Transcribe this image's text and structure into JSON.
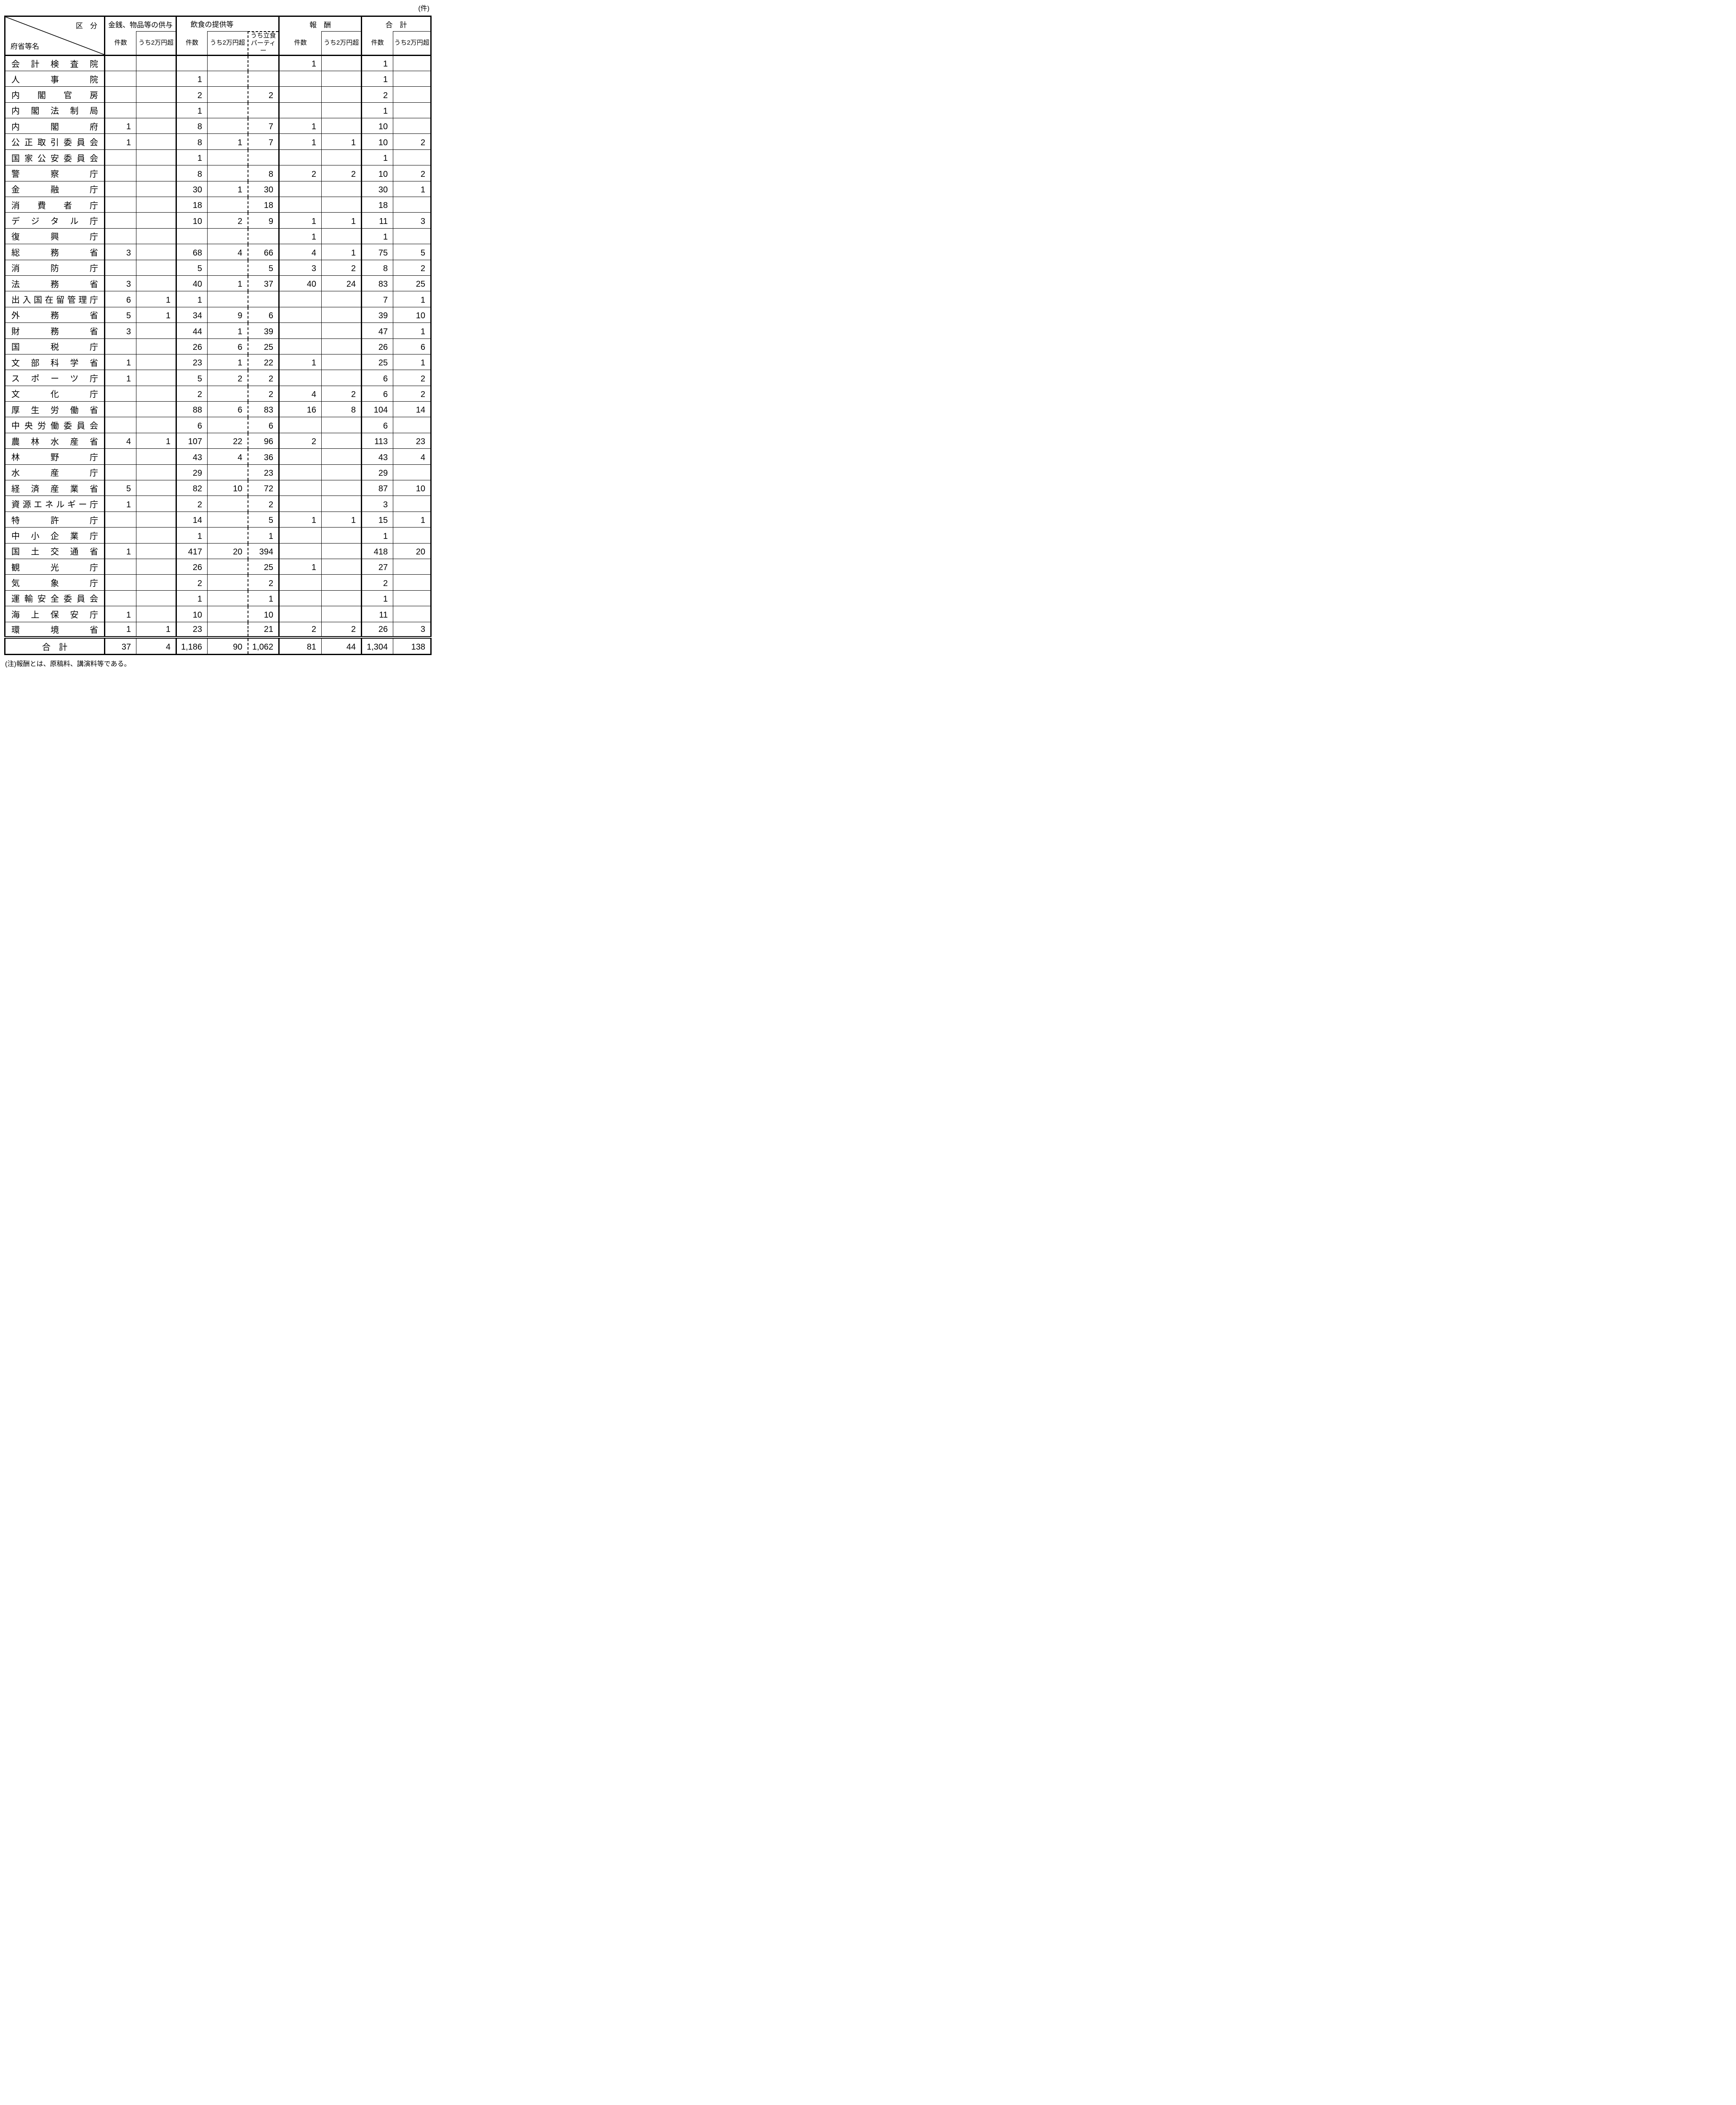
{
  "unit_label": "(件)",
  "note": "(注)報酬とは、原稿料、講演料等である。",
  "header": {
    "corner": {
      "top_right": "区　分",
      "bottom_left": "府省等名"
    },
    "groups": [
      {
        "label": "金銭、物品等の供与"
      },
      {
        "label": "飲食の提供等"
      },
      {
        "label": "報　酬"
      },
      {
        "label": "合　計"
      }
    ],
    "sub_columns": [
      "件数",
      "うち2万円超",
      "件数",
      "うち2万円超",
      "うち立食\nパーティー",
      "件数",
      "うち2万円超",
      "件数",
      "うち2万円超"
    ]
  },
  "rows": [
    {
      "name": "会計検査院",
      "values": [
        "",
        "",
        "",
        "",
        "",
        "1",
        "",
        "1",
        ""
      ]
    },
    {
      "name": "人事院",
      "values": [
        "",
        "",
        "1",
        "",
        "",
        "",
        "",
        "1",
        ""
      ]
    },
    {
      "name": "内閣官房",
      "values": [
        "",
        "",
        "2",
        "",
        "2",
        "",
        "",
        "2",
        ""
      ]
    },
    {
      "name": "内閣法制局",
      "values": [
        "",
        "",
        "1",
        "",
        "",
        "",
        "",
        "1",
        ""
      ]
    },
    {
      "name": "内閣府",
      "values": [
        "1",
        "",
        "8",
        "",
        "7",
        "1",
        "",
        "10",
        ""
      ]
    },
    {
      "name": "公正取引委員会",
      "values": [
        "1",
        "",
        "8",
        "1",
        "7",
        "1",
        "1",
        "10",
        "2"
      ]
    },
    {
      "name": "国家公安委員会",
      "values": [
        "",
        "",
        "1",
        "",
        "",
        "",
        "",
        "1",
        ""
      ]
    },
    {
      "name": "警察庁",
      "values": [
        "",
        "",
        "8",
        "",
        "8",
        "2",
        "2",
        "10",
        "2"
      ]
    },
    {
      "name": "金融庁",
      "values": [
        "",
        "",
        "30",
        "1",
        "30",
        "",
        "",
        "30",
        "1"
      ]
    },
    {
      "name": "消費者庁",
      "values": [
        "",
        "",
        "18",
        "",
        "18",
        "",
        "",
        "18",
        ""
      ]
    },
    {
      "name": "デジタル庁",
      "values": [
        "",
        "",
        "10",
        "2",
        "9",
        "1",
        "1",
        "11",
        "3"
      ]
    },
    {
      "name": "復興庁",
      "values": [
        "",
        "",
        "",
        "",
        "",
        "1",
        "",
        "1",
        ""
      ]
    },
    {
      "name": "総務省",
      "values": [
        "3",
        "",
        "68",
        "4",
        "66",
        "4",
        "1",
        "75",
        "5"
      ]
    },
    {
      "name": "消防庁",
      "values": [
        "",
        "",
        "5",
        "",
        "5",
        "3",
        "2",
        "8",
        "2"
      ]
    },
    {
      "name": "法務省",
      "values": [
        "3",
        "",
        "40",
        "1",
        "37",
        "40",
        "24",
        "83",
        "25"
      ]
    },
    {
      "name": "出入国在留管理庁",
      "values": [
        "6",
        "1",
        "1",
        "",
        "",
        "",
        "",
        "7",
        "1"
      ]
    },
    {
      "name": "外務省",
      "values": [
        "5",
        "1",
        "34",
        "9",
        "6",
        "",
        "",
        "39",
        "10"
      ]
    },
    {
      "name": "財務省",
      "values": [
        "3",
        "",
        "44",
        "1",
        "39",
        "",
        "",
        "47",
        "1"
      ]
    },
    {
      "name": "国税庁",
      "values": [
        "",
        "",
        "26",
        "6",
        "25",
        "",
        "",
        "26",
        "6"
      ]
    },
    {
      "name": "文部科学省",
      "values": [
        "1",
        "",
        "23",
        "1",
        "22",
        "1",
        "",
        "25",
        "1"
      ]
    },
    {
      "name": "スポーツ庁",
      "values": [
        "1",
        "",
        "5",
        "2",
        "2",
        "",
        "",
        "6",
        "2"
      ]
    },
    {
      "name": "文化庁",
      "values": [
        "",
        "",
        "2",
        "",
        "2",
        "4",
        "2",
        "6",
        "2"
      ]
    },
    {
      "name": "厚生労働省",
      "values": [
        "",
        "",
        "88",
        "6",
        "83",
        "16",
        "8",
        "104",
        "14"
      ]
    },
    {
      "name": "中央労働委員会",
      "values": [
        "",
        "",
        "6",
        "",
        "6",
        "",
        "",
        "6",
        ""
      ]
    },
    {
      "name": "農林水産省",
      "values": [
        "4",
        "1",
        "107",
        "22",
        "96",
        "2",
        "",
        "113",
        "23"
      ]
    },
    {
      "name": "林野庁",
      "values": [
        "",
        "",
        "43",
        "4",
        "36",
        "",
        "",
        "43",
        "4"
      ]
    },
    {
      "name": "水産庁",
      "values": [
        "",
        "",
        "29",
        "",
        "23",
        "",
        "",
        "29",
        ""
      ]
    },
    {
      "name": "経済産業省",
      "values": [
        "5",
        "",
        "82",
        "10",
        "72",
        "",
        "",
        "87",
        "10"
      ]
    },
    {
      "name": "資源エネルギー庁",
      "values": [
        "1",
        "",
        "2",
        "",
        "2",
        "",
        "",
        "3",
        ""
      ]
    },
    {
      "name": "特許庁",
      "values": [
        "",
        "",
        "14",
        "",
        "5",
        "1",
        "1",
        "15",
        "1"
      ]
    },
    {
      "name": "中小企業庁",
      "values": [
        "",
        "",
        "1",
        "",
        "1",
        "",
        "",
        "1",
        ""
      ]
    },
    {
      "name": "国土交通省",
      "values": [
        "1",
        "",
        "417",
        "20",
        "394",
        "",
        "",
        "418",
        "20"
      ]
    },
    {
      "name": "観光庁",
      "values": [
        "",
        "",
        "26",
        "",
        "25",
        "1",
        "",
        "27",
        ""
      ]
    },
    {
      "name": "気象庁",
      "values": [
        "",
        "",
        "2",
        "",
        "2",
        "",
        "",
        "2",
        ""
      ]
    },
    {
      "name": "運輸安全委員会",
      "values": [
        "",
        "",
        "1",
        "",
        "1",
        "",
        "",
        "1",
        ""
      ]
    },
    {
      "name": "海上保安庁",
      "values": [
        "1",
        "",
        "10",
        "",
        "10",
        "",
        "",
        "11",
        ""
      ]
    },
    {
      "name": "環境省",
      "values": [
        "1",
        "1",
        "23",
        "",
        "21",
        "2",
        "2",
        "26",
        "3"
      ]
    }
  ],
  "total": {
    "name": "合　計",
    "values": [
      "37",
      "4",
      "1,186",
      "90",
      "1,062",
      "81",
      "44",
      "1,304",
      "138"
    ]
  }
}
